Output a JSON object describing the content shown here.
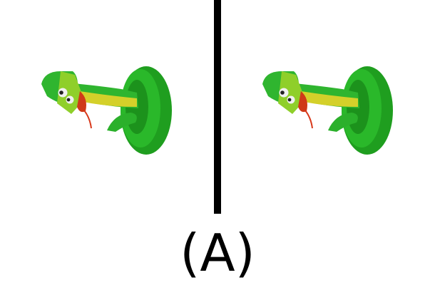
{
  "label": "(A)",
  "colors": {
    "background": "#ffffff",
    "divider": "#000000",
    "snake_dark_green": "#22a822",
    "snake_light_green": "#44cc2e",
    "snake_yellow": "#d8d42a",
    "head_lime": "#8fcf2a",
    "tongue_red": "#d8381a"
  },
  "panels": [
    {
      "object": "snake-toy-icon"
    },
    {
      "object": "snake-toy-icon"
    }
  ]
}
